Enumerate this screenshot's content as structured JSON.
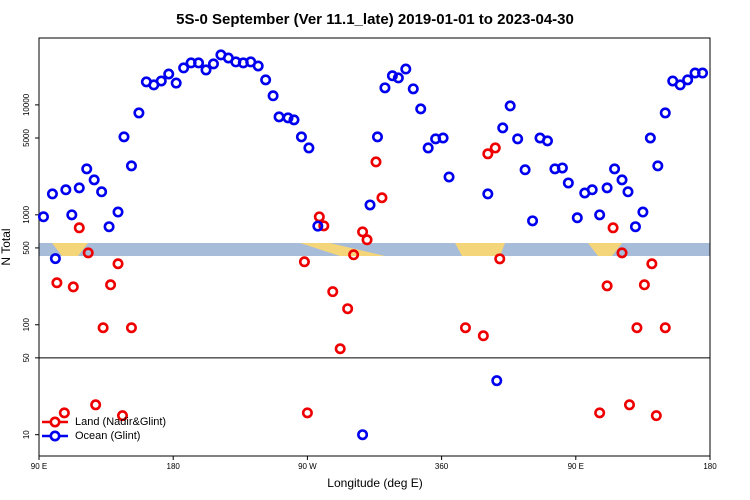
{
  "chart_data": {
    "type": "scatter",
    "title": "5S-0 September (Ver 11.1_late)   2019-01-01 to 2023-04-30",
    "x_label": "Longitude (deg E)",
    "y_label": "N Total",
    "log_y": true,
    "xlim": [
      90,
      540
    ],
    "xticks": [
      {
        "value": 90,
        "label": "90 E"
      },
      180,
      {
        "value": 270,
        "label": "90 W"
      },
      360,
      {
        "value": 450,
        "label": "90 E"
      },
      {
        "value": 540,
        "label": "180"
      }
    ],
    "ylim": [
      6.4,
      40600
    ],
    "yticks": [
      10,
      50,
      100,
      500,
      1000,
      5000,
      10000
    ],
    "hline": 50,
    "legend": "bottom-left",
    "series": [
      {
        "name": "Land (Nadir&Glint)",
        "color": "#ee0000",
        "x": [
          102,
          107,
          113,
          117,
          123,
          128,
          133,
          138,
          143,
          146,
          152,
          268,
          270,
          278,
          281,
          287,
          292,
          297,
          301,
          307,
          310,
          316,
          320,
          376,
          388,
          391,
          396,
          399,
          466,
          471,
          475,
          481,
          486,
          491,
          496,
          501,
          504,
          510
        ],
        "values": [
          241,
          15.8,
          221,
          762,
          451,
          18.7,
          94,
          231,
          359,
          14.9,
          94,
          374,
          15.8,
          959,
          794,
          200,
          60.5,
          140,
          433,
          700,
          593,
          3030,
          1430,
          94,
          79.4,
          3590,
          4060,
          398,
          15.8,
          226,
          762,
          451,
          18.7,
          94,
          231,
          359,
          14.9,
          94
        ]
      },
      {
        "name": "Ocean (Glint)",
        "color": "#0000ee",
        "x": [
          93,
          99,
          101,
          108,
          112,
          117,
          122,
          127,
          132,
          137,
          143,
          147,
          152,
          157,
          162,
          167,
          172,
          177,
          182,
          187,
          192,
          197,
          202,
          207,
          212,
          217,
          222,
          227,
          232,
          237,
          242,
          247,
          251,
          257,
          261,
          266,
          271,
          277,
          307,
          312,
          317,
          322,
          327,
          331,
          336,
          341,
          346,
          351,
          356,
          361,
          365,
          391,
          397,
          401,
          406,
          411,
          416,
          421,
          426,
          431,
          436,
          441,
          445,
          451,
          456,
          461,
          466,
          471,
          476,
          481,
          485,
          490,
          495,
          500,
          505,
          510,
          515,
          520,
          525,
          530,
          535
        ],
        "values": [
          960,
          1550,
          400,
          1690,
          1000,
          1760,
          2620,
          2080,
          1620,
          780,
          1060,
          5120,
          2790,
          8450,
          16200,
          15200,
          16500,
          19100,
          15800,
          21700,
          24100,
          24100,
          20800,
          23600,
          28500,
          26700,
          24600,
          24100,
          24600,
          22600,
          16900,
          12100,
          7780,
          7620,
          7310,
          5120,
          4060,
          790,
          10,
          1230,
          5120,
          14300,
          18400,
          17600,
          21200,
          14000,
          9200,
          4060,
          4910,
          5000,
          2210,
          1550,
          31,
          6180,
          9790,
          4910,
          2570,
          882,
          5000,
          4710,
          2620,
          2670,
          1950,
          940,
          1580,
          1690,
          1000,
          1760,
          2620,
          2080,
          1620,
          780,
          1060,
          5000,
          2790,
          8450,
          16500,
          15200,
          16900,
          19500,
          19500
        ]
      }
    ]
  }
}
